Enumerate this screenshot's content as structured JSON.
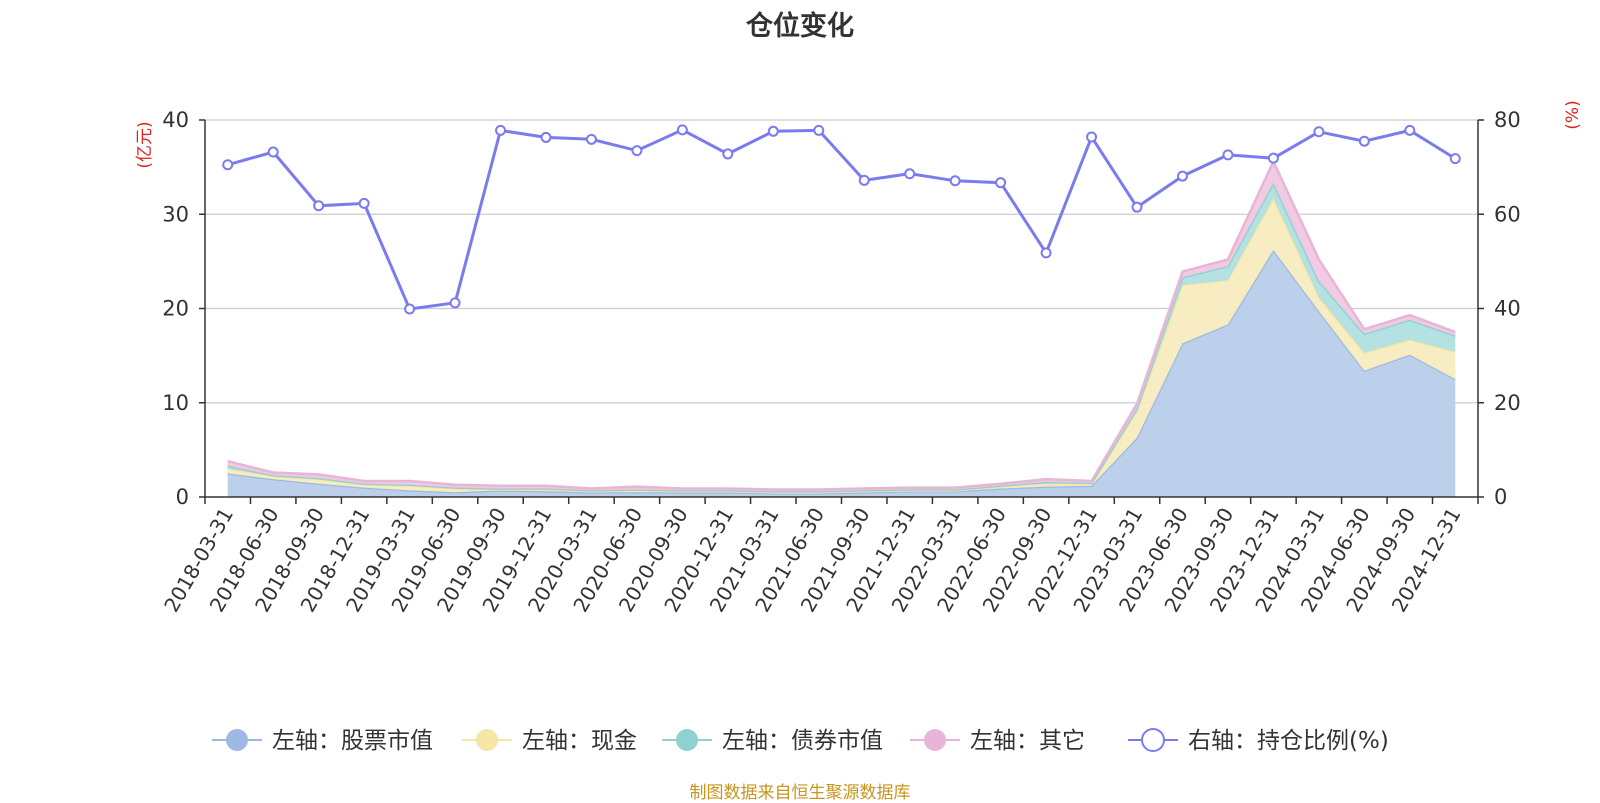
{
  "title": "仓位变化",
  "footer": "制图数据来自恒生聚源数据库",
  "chart_data": {
    "type": "area",
    "title": "仓位变化",
    "x": [
      "2018-03-31",
      "2018-06-30",
      "2018-09-30",
      "2018-12-31",
      "2019-03-31",
      "2019-06-30",
      "2019-09-30",
      "2019-12-31",
      "2020-03-31",
      "2020-06-30",
      "2020-09-30",
      "2020-12-31",
      "2021-03-31",
      "2021-06-30",
      "2021-09-30",
      "2021-12-31",
      "2022-03-31",
      "2022-06-30",
      "2022-09-30",
      "2022-12-31",
      "2023-03-31",
      "2023-06-30",
      "2023-09-30",
      "2023-12-31",
      "2024-03-31",
      "2024-06-30",
      "2024-09-30",
      "2024-12-31"
    ],
    "left_axis": {
      "unit": "(亿元)",
      "ylim": [
        0,
        40
      ],
      "ticks": [
        0,
        10,
        20,
        30,
        40
      ]
    },
    "right_axis": {
      "unit": "(%)",
      "ylim": [
        0,
        80
      ],
      "ticks": [
        0,
        20,
        40,
        60,
        80
      ]
    },
    "stacked_series": [
      {
        "name": "左轴：股票市值",
        "color": "#9db9e3",
        "fill": "#b8cdea",
        "values": [
          2.5,
          1.9,
          1.4,
          1.0,
          0.7,
          0.5,
          0.7,
          0.6,
          0.5,
          0.5,
          0.5,
          0.5,
          0.4,
          0.4,
          0.5,
          0.6,
          0.6,
          0.9,
          1.1,
          1.2,
          6.3,
          16.3,
          18.3,
          26.2,
          19.7,
          13.4,
          15.1,
          12.5
        ]
      },
      {
        "name": "左轴：现金",
        "color": "#f5e6a3",
        "fill": "#f8ecbf",
        "values": [
          0.5,
          0.3,
          0.5,
          0.3,
          0.5,
          0.4,
          0.1,
          0.2,
          0.1,
          0.2,
          0.1,
          0.1,
          0.1,
          0.1,
          0.1,
          0.1,
          0.1,
          0.2,
          0.3,
          0.2,
          2.8,
          6.2,
          4.7,
          5.5,
          1.5,
          1.9,
          1.6,
          2.9
        ]
      },
      {
        "name": "左轴：债券市值",
        "color": "#8fd1d1",
        "fill": "#b0dfe0",
        "values": [
          0.3,
          0.1,
          0.1,
          0.1,
          0.1,
          0.1,
          0.1,
          0.1,
          0.1,
          0.1,
          0.1,
          0.1,
          0.1,
          0.1,
          0.1,
          0.1,
          0.1,
          0.1,
          0.2,
          0.1,
          0.3,
          0.8,
          1.5,
          1.6,
          1.7,
          2.0,
          2.1,
          1.7
        ]
      },
      {
        "name": "左轴：其它",
        "color": "#e8b4d8",
        "fill": "#efc8e2",
        "values": [
          0.5,
          0.3,
          0.4,
          0.3,
          0.4,
          0.3,
          0.3,
          0.3,
          0.2,
          0.3,
          0.2,
          0.2,
          0.2,
          0.2,
          0.2,
          0.2,
          0.2,
          0.2,
          0.3,
          0.2,
          0.5,
          0.6,
          0.7,
          2.3,
          2.3,
          0.5,
          0.5,
          0.4
        ]
      }
    ],
    "line_series": {
      "name": "右轴：持仓比例(%)",
      "color": "#7a7bef",
      "values": [
        70.5,
        73.2,
        61.8,
        62.3,
        39.9,
        41.2,
        77.8,
        76.3,
        75.9,
        73.5,
        77.9,
        72.8,
        77.6,
        77.8,
        67.2,
        68.6,
        67.1,
        66.7,
        51.8,
        76.4,
        61.5,
        68.1,
        72.6,
        71.9,
        77.5,
        75.5,
        77.8,
        71.8
      ]
    },
    "legend": [
      "左轴：股票市值",
      "左轴：现金",
      "左轴：债券市值",
      "左轴：其它",
      "右轴：持仓比例(%)"
    ],
    "legend_position": "bottom",
    "grid": true
  }
}
